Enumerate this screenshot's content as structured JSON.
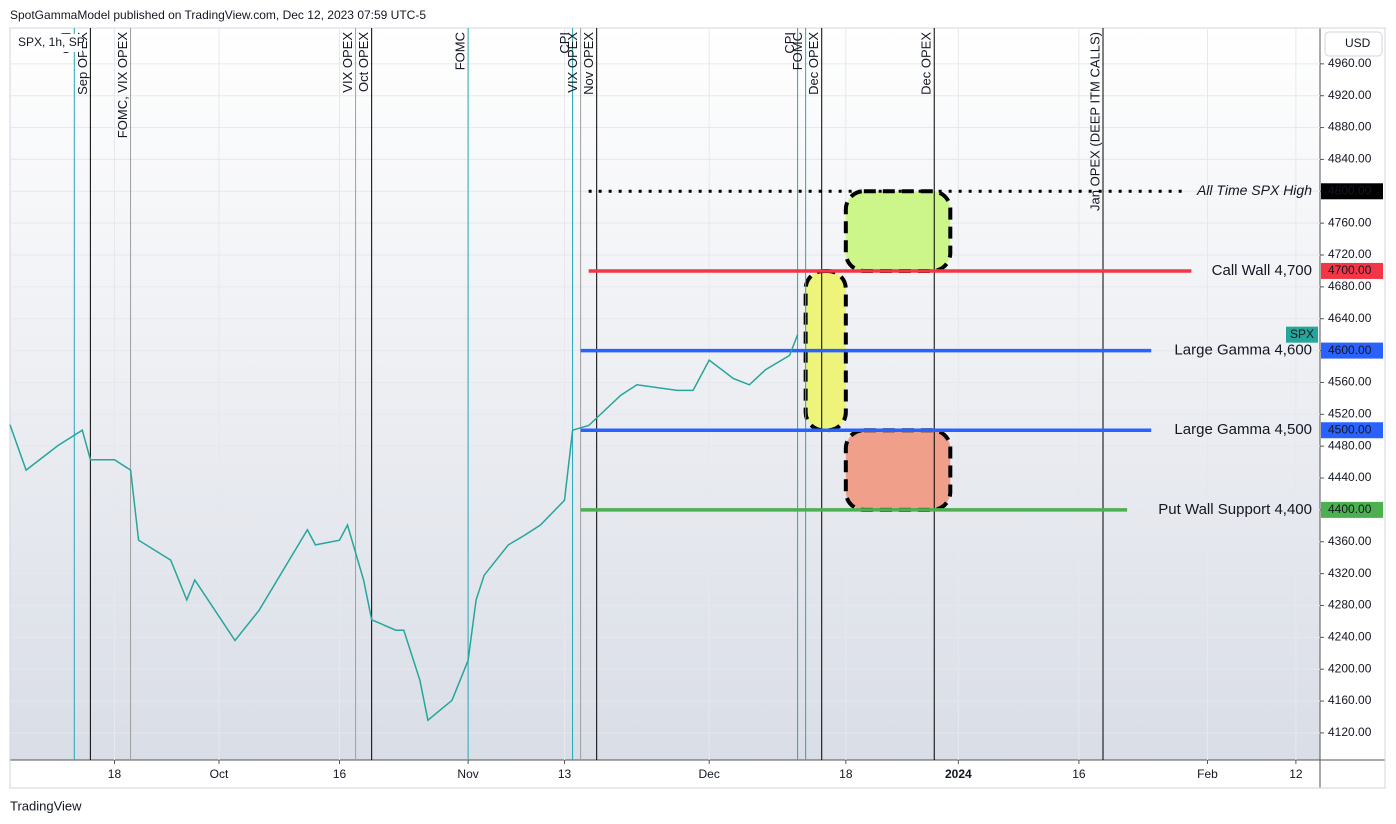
{
  "page": {
    "header": "SpotGammaModel published on TradingView.com, Dec 12, 2023 07:59 UTC-5",
    "footer": "TradingView"
  },
  "chart_data": {
    "type": "line",
    "symbol_label": "SPX, 1h, SP",
    "currency": "USD",
    "x": [
      "2023-09-05",
      "2023-09-07",
      "2023-09-11",
      "2023-09-14",
      "2023-09-15",
      "2023-09-18",
      "2023-09-20",
      "2023-09-21",
      "2023-09-25",
      "2023-09-27",
      "2023-09-28",
      "2023-10-03",
      "2023-10-06",
      "2023-10-12",
      "2023-10-13",
      "2023-10-16",
      "2023-10-17",
      "2023-10-19",
      "2023-10-20",
      "2023-10-23",
      "2023-10-24",
      "2023-10-26",
      "2023-10-27",
      "2023-10-30",
      "2023-10-31",
      "2023-11-01",
      "2023-11-02",
      "2023-11-03",
      "2023-11-06",
      "2023-11-08",
      "2023-11-10",
      "2023-11-13",
      "2023-11-14",
      "2023-11-16",
      "2023-11-20",
      "2023-11-22",
      "2023-11-27",
      "2023-11-29",
      "2023-12-01",
      "2023-12-04",
      "2023-12-06",
      "2023-12-08",
      "2023-12-11",
      "2023-12-12"
    ],
    "series": [
      {
        "name": "SPX",
        "color": "#26a69a",
        "values": [
          4507,
          4450,
          4481,
          4500,
          4463,
          4463,
          4450,
          4362,
          4337,
          4287,
          4312,
          4236,
          4274,
          4375,
          4356,
          4362,
          4381,
          4312,
          4262,
          4249,
          4249,
          4186,
          4136,
          4161,
          4186,
          4211,
          4287,
          4318,
          4356,
          4368,
          4381,
          4412,
          4500,
          4506,
          4544,
          4557,
          4550,
          4550,
          4588,
          4565,
          4557,
          4576,
          4594,
          4620
        ]
      }
    ],
    "xlim": [
      "2023-09-05",
      "2024-02-15"
    ],
    "xticks": [
      {
        "value": "2023-09-18",
        "label": "18"
      },
      {
        "value": "2023-10-01",
        "label": "Oct"
      },
      {
        "value": "2023-10-16",
        "label": "16"
      },
      {
        "value": "2023-11-01",
        "label": "Nov"
      },
      {
        "value": "2023-11-13",
        "label": "13"
      },
      {
        "value": "2023-12-01",
        "label": "Dec"
      },
      {
        "value": "2023-12-18",
        "label": "18"
      },
      {
        "value": "2024-01-01",
        "label": "2024"
      },
      {
        "value": "2024-01-16",
        "label": "16"
      },
      {
        "value": "2024-02-01",
        "label": "Feb"
      },
      {
        "value": "2024-02-12",
        "label": "12"
      }
    ],
    "ylim": [
      4086,
      5005
    ],
    "yticks": [
      {
        "value": 4120,
        "label": "4120.00"
      },
      {
        "value": 4160,
        "label": "4160.00"
      },
      {
        "value": 4200,
        "label": "4200.00"
      },
      {
        "value": 4240,
        "label": "4240.00"
      },
      {
        "value": 4280,
        "label": "4280.00"
      },
      {
        "value": 4320,
        "label": "4320.00"
      },
      {
        "value": 4360,
        "label": "4360.00"
      },
      {
        "value": 4400,
        "label": "4400.00"
      },
      {
        "value": 4440,
        "label": "4440.00"
      },
      {
        "value": 4480,
        "label": "4480.00"
      },
      {
        "value": 4520,
        "label": "4520.00"
      },
      {
        "value": 4560,
        "label": "4560.00"
      },
      {
        "value": 4600,
        "label": "4600.00"
      },
      {
        "value": 4640,
        "label": "4640.00"
      },
      {
        "value": 4680,
        "label": "4680.00"
      },
      {
        "value": 4720,
        "label": "4720.00"
      },
      {
        "value": 4760,
        "label": "4760.00"
      },
      {
        "value": 4800,
        "label": "4800.00"
      },
      {
        "value": 4840,
        "label": "4840.00"
      },
      {
        "value": 4880,
        "label": "4880.00"
      },
      {
        "value": 4920,
        "label": "4920.00"
      },
      {
        "value": 4960,
        "label": "4960.00"
      }
    ],
    "grid": true,
    "levels": [
      {
        "value": 4800,
        "label": "4800.00",
        "text": "All Time SPX High",
        "color": "#000000",
        "text_color": "#000000",
        "dashed": true,
        "start": "2023-11-16",
        "end": "2024-01-29"
      },
      {
        "value": 4700,
        "label": "4700.00",
        "text": "Call Wall 4,700",
        "color": "#f23645",
        "text_color": "#1e7d5e",
        "dashed": false,
        "start": "2023-11-16",
        "end": "2024-01-30"
      },
      {
        "value": 4600,
        "label": "4600.00",
        "text": "Large Gamma 4,600",
        "color": "#2962ff",
        "text_color": "#1e7d5e",
        "dashed": false,
        "start": "2023-11-15",
        "end": "2024-01-25"
      },
      {
        "value": 4500,
        "label": "4500.00",
        "text": "Large Gamma 4,500",
        "color": "#2962ff",
        "text_color": "#1e7d5e",
        "dashed": false,
        "start": "2023-11-15",
        "end": "2024-01-25"
      },
      {
        "value": 4400,
        "label": "4400.00",
        "text": "Put Wall Support 4,400",
        "color": "#4caf50",
        "text_color": "#1e7d5e",
        "dashed": false,
        "start": "2023-11-15",
        "end": "2024-01-22"
      }
    ],
    "zones": [
      {
        "from": 4700,
        "to": 4800,
        "start": "2023-12-18",
        "end": "2023-12-31",
        "color": "#ccf58a"
      },
      {
        "from": 4500,
        "to": 4700,
        "start": "2023-12-13",
        "end": "2023-12-18",
        "color": "#eef47a"
      },
      {
        "from": 4400,
        "to": 4500,
        "start": "2023-12-18",
        "end": "2023-12-31",
        "color": "#f0a08a"
      }
    ],
    "events": [
      {
        "date": "2023-09-13",
        "label": "CPI",
        "color": "#26a6b4"
      },
      {
        "date": "2023-09-15",
        "label": "Sep OPEX",
        "color": "#000000"
      },
      {
        "date": "2023-09-20",
        "label": "FOMC, VIX OPEX",
        "color": "#9e9e9e"
      },
      {
        "date": "2023-10-18",
        "label": "VIX OPEX",
        "color": "#9e9e9e"
      },
      {
        "date": "2023-10-20",
        "label": "Oct OPEX",
        "color": "#000000"
      },
      {
        "date": "2023-11-01",
        "label": "FOMC",
        "color": "#26a6b4"
      },
      {
        "date": "2023-11-14",
        "label": "CPI",
        "color": "#26a6b4"
      },
      {
        "date": "2023-11-15",
        "label": "VIX OPEX",
        "color": "#9e9e9e"
      },
      {
        "date": "2023-11-17",
        "label": "Nov OPEX",
        "color": "#000000"
      },
      {
        "date": "2023-12-12",
        "label": "CPI",
        "color": "#26a6b4"
      },
      {
        "date": "2023-12-13",
        "label": "FOMC",
        "color": "#26a6b4"
      },
      {
        "date": "2023-12-15",
        "label": "Dec OPEX",
        "color": "#000000"
      },
      {
        "date": "2023-12-29",
        "label": "Dec OPEX",
        "color": "#000000"
      },
      {
        "date": "2024-01-19",
        "label": "Jan OPEX (DEEP ITM CALLS)",
        "color": "#000000"
      }
    ]
  }
}
